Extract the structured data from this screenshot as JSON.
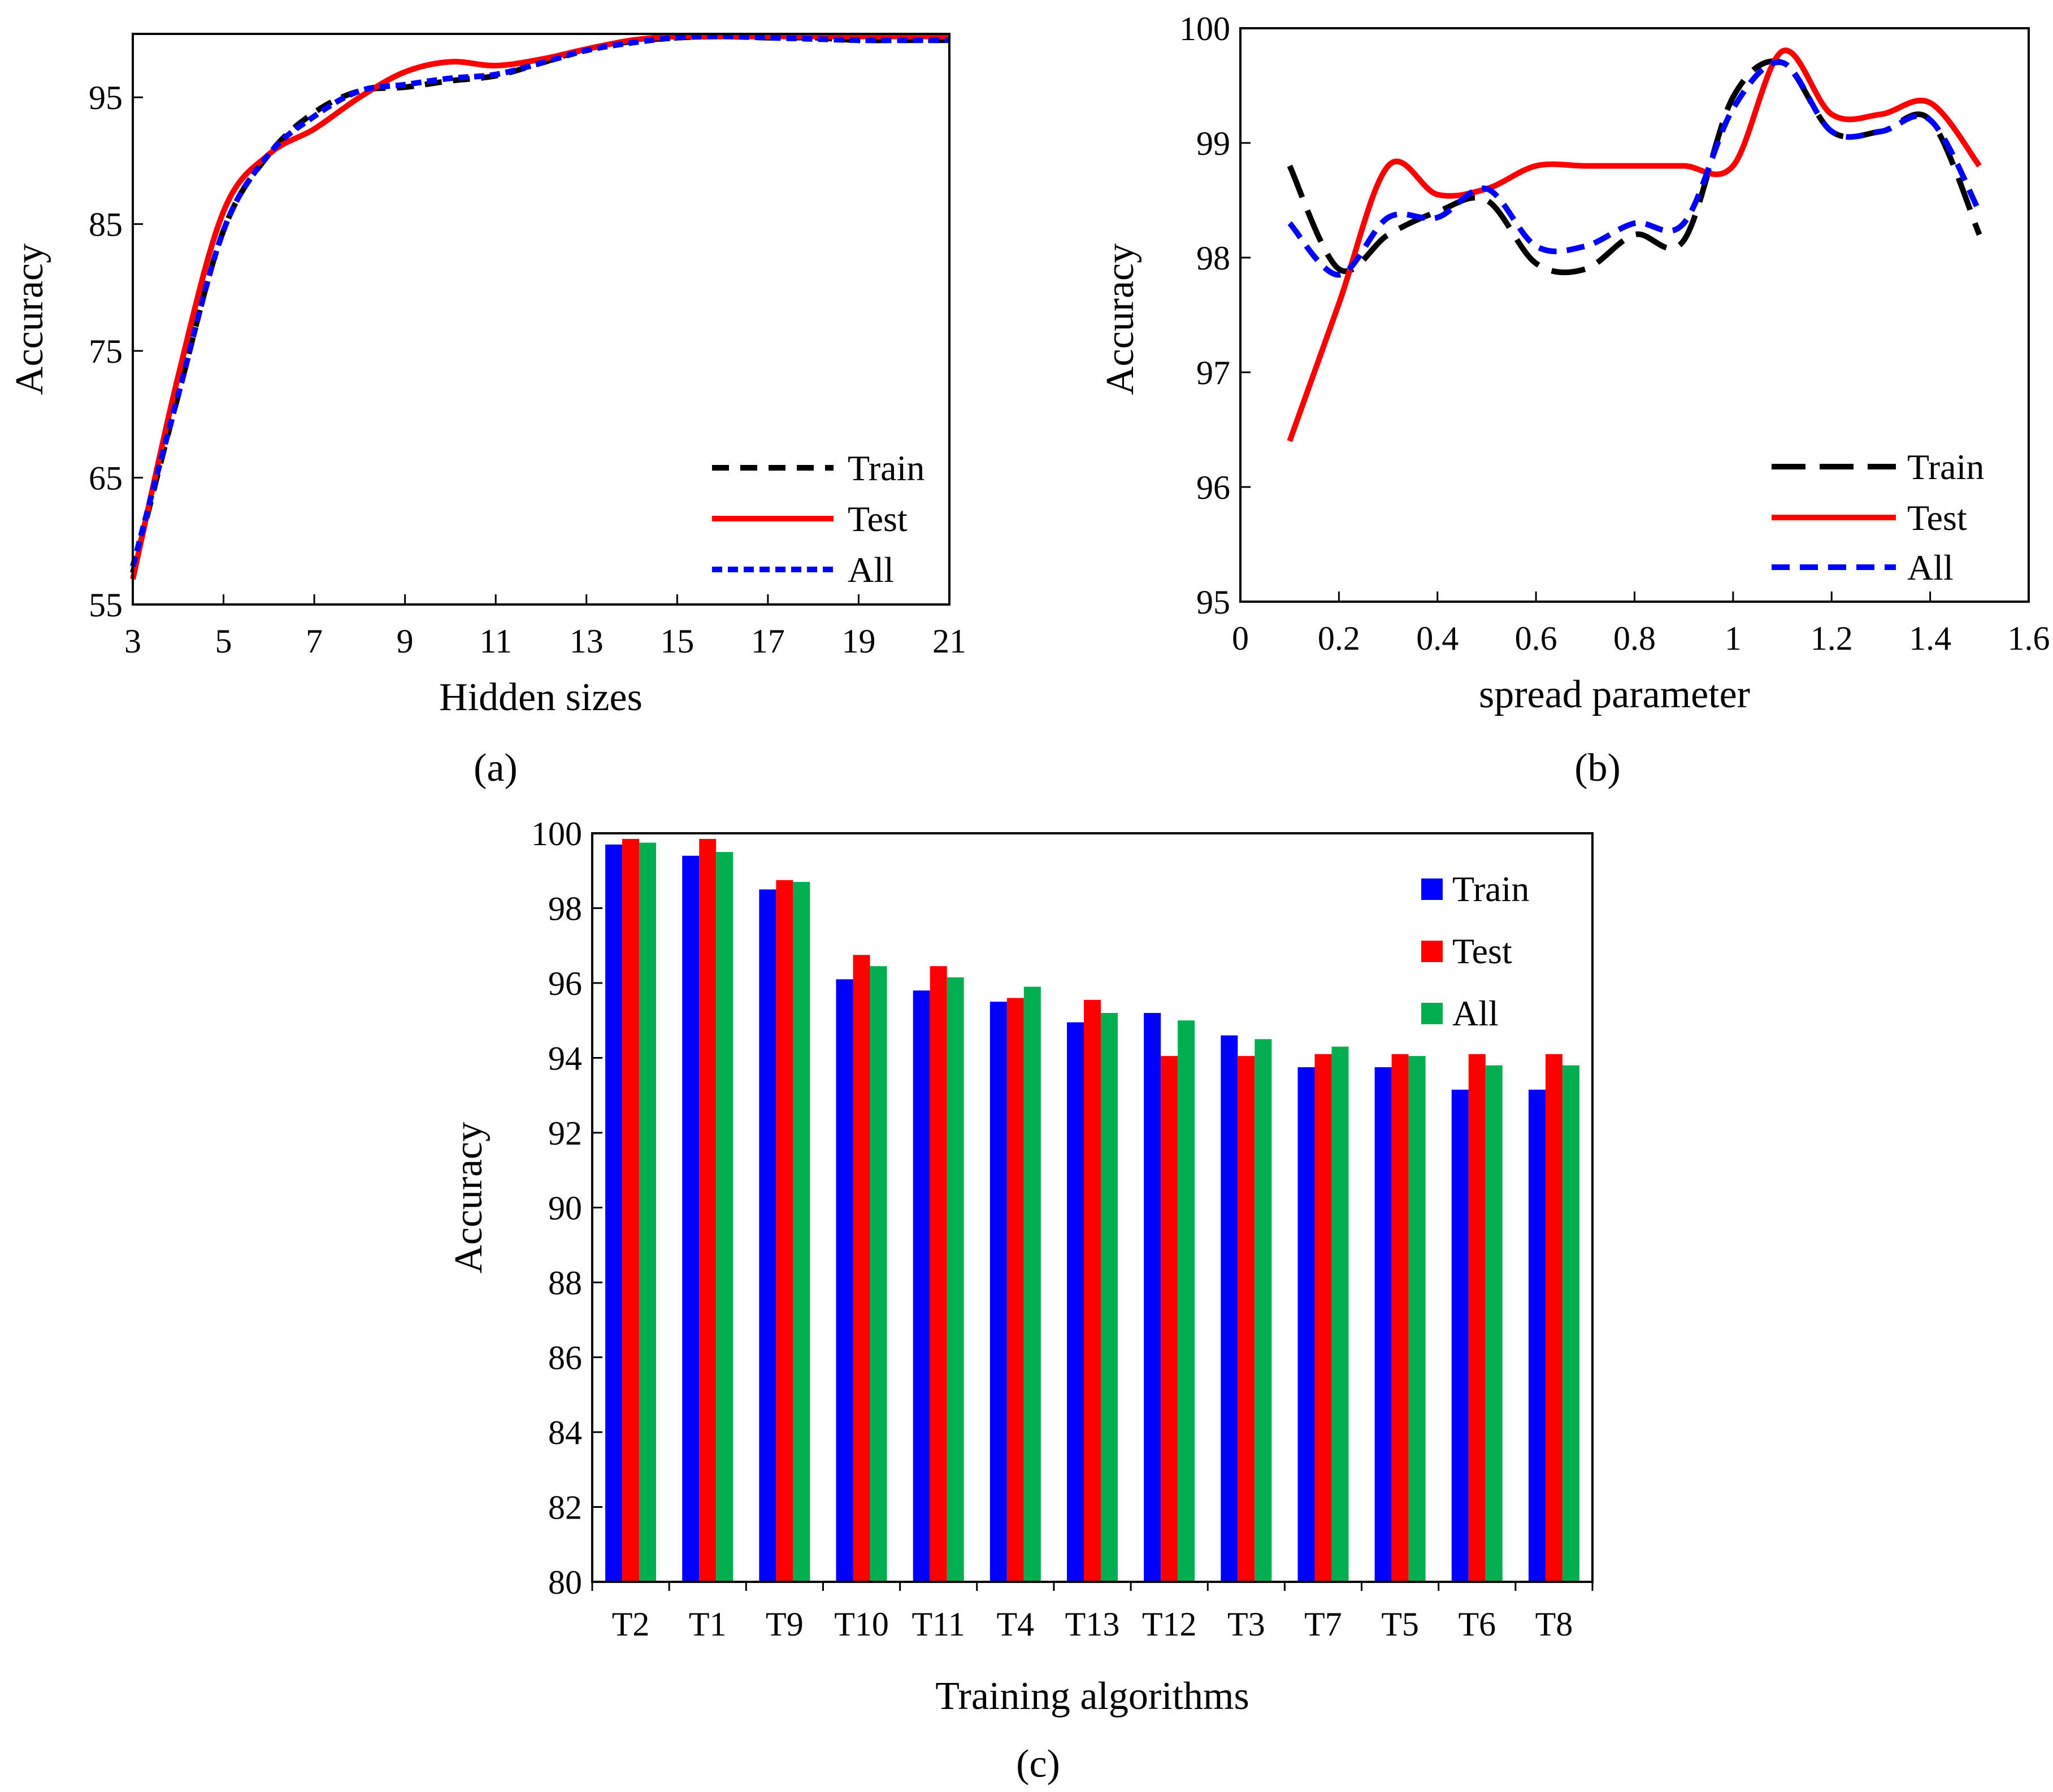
{
  "colors": {
    "train_line": "#000000",
    "test": "#ff0000",
    "all": "#0000ff",
    "train_bar": "#0000ff",
    "all_bar": "#00b050"
  },
  "chart_data": [
    {
      "id": "a",
      "type": "line",
      "caption": "(a)",
      "xlabel": "Hidden sizes",
      "ylabel": "Accuracy",
      "xlim": [
        3,
        21
      ],
      "ylim": [
        55,
        100
      ],
      "xticks": [
        3,
        5,
        7,
        9,
        11,
        13,
        15,
        17,
        19,
        21
      ],
      "yticks": [
        55,
        65,
        75,
        85,
        95
      ],
      "legend_position": "bottom-right",
      "series": [
        {
          "name": "Train",
          "x": [
            3,
            4,
            5,
            6,
            7,
            8,
            9,
            10,
            11,
            12,
            13,
            14,
            15,
            16,
            17,
            18,
            19,
            20,
            21
          ],
          "values": [
            57.5,
            71.5,
            84.5,
            90.5,
            93.8,
            95.5,
            95.8,
            96.3,
            96.7,
            97.7,
            98.8,
            99.4,
            99.7,
            99.8,
            99.7,
            99.7,
            99.5,
            99.5,
            99.5
          ]
        },
        {
          "name": "Test",
          "x": [
            3,
            4,
            5,
            6,
            7,
            8,
            9,
            10,
            11,
            12,
            13,
            14,
            15,
            16,
            17,
            18,
            19,
            20,
            21
          ],
          "values": [
            57.0,
            73.0,
            86.0,
            90.5,
            92.5,
            95.0,
            97.0,
            97.8,
            97.5,
            98.0,
            98.8,
            99.5,
            99.8,
            99.8,
            99.8,
            99.8,
            99.8,
            99.8,
            99.8
          ]
        },
        {
          "name": "All",
          "x": [
            3,
            4,
            5,
            6,
            7,
            8,
            9,
            10,
            11,
            12,
            13,
            14,
            15,
            16,
            17,
            18,
            19,
            20,
            21
          ],
          "values": [
            58.0,
            71.5,
            84.5,
            90.5,
            93.5,
            95.5,
            96.0,
            96.5,
            96.8,
            97.7,
            98.7,
            99.3,
            99.7,
            99.8,
            99.7,
            99.6,
            99.5,
            99.5,
            99.5
          ]
        }
      ]
    },
    {
      "id": "b",
      "type": "line",
      "caption": "(b)",
      "xlabel": "spread parameter",
      "ylabel": "Accuracy",
      "xlim": [
        0,
        1.6
      ],
      "ylim": [
        95,
        100
      ],
      "xticks": [
        0,
        0.2,
        0.4,
        0.6,
        0.8,
        1,
        1.2,
        1.4,
        1.6
      ],
      "yticks": [
        95,
        96,
        97,
        98,
        99,
        100
      ],
      "legend_position": "bottom-right",
      "series": [
        {
          "name": "Train",
          "x": [
            0.1,
            0.2,
            0.3,
            0.4,
            0.5,
            0.6,
            0.7,
            0.8,
            0.9,
            1.0,
            1.1,
            1.2,
            1.3,
            1.4,
            1.5
          ],
          "values": [
            98.8,
            97.9,
            98.2,
            98.4,
            98.5,
            97.95,
            97.9,
            98.2,
            98.15,
            99.4,
            99.7,
            99.1,
            99.1,
            99.2,
            98.2
          ]
        },
        {
          "name": "Test",
          "x": [
            0.1,
            0.2,
            0.3,
            0.4,
            0.5,
            0.6,
            0.7,
            0.8,
            0.9,
            1.0,
            1.1,
            1.2,
            1.3,
            1.4,
            1.5
          ],
          "values": [
            96.4,
            97.6,
            98.8,
            98.55,
            98.6,
            98.8,
            98.8,
            98.8,
            98.8,
            98.8,
            99.8,
            99.25,
            99.25,
            99.35,
            98.8
          ]
        },
        {
          "name": "All",
          "x": [
            0.1,
            0.2,
            0.3,
            0.4,
            0.5,
            0.6,
            0.7,
            0.8,
            0.9,
            1.0,
            1.1,
            1.2,
            1.3,
            1.4,
            1.5
          ],
          "values": [
            98.3,
            97.85,
            98.35,
            98.35,
            98.6,
            98.1,
            98.1,
            98.3,
            98.3,
            99.3,
            99.7,
            99.1,
            99.1,
            99.2,
            98.4
          ]
        }
      ]
    },
    {
      "id": "c",
      "type": "bar",
      "caption": "(c)",
      "xlabel": "Training algorithms",
      "ylabel": "Accuracy",
      "ylim": [
        80,
        100
      ],
      "yticks": [
        80,
        82,
        84,
        86,
        88,
        90,
        92,
        94,
        96,
        98,
        100
      ],
      "legend_position": "top-right",
      "categories": [
        "T2",
        "T1",
        "T9",
        "T10",
        "T11",
        "T4",
        "T13",
        "T12",
        "T3",
        "T7",
        "T5",
        "T6",
        "T8"
      ],
      "series": [
        {
          "name": "Train",
          "values": [
            99.7,
            99.4,
            98.5,
            96.1,
            95.8,
            95.5,
            94.95,
            95.2,
            94.6,
            93.75,
            93.75,
            93.15,
            93.15
          ]
        },
        {
          "name": "Test",
          "values": [
            99.85,
            99.85,
            98.75,
            96.75,
            96.45,
            95.6,
            95.55,
            94.05,
            94.05,
            94.1,
            94.1,
            94.1,
            94.1
          ]
        },
        {
          "name": "All",
          "values": [
            99.75,
            99.5,
            98.7,
            96.45,
            96.15,
            95.9,
            95.2,
            95.0,
            94.5,
            94.3,
            94.05,
            93.8,
            93.8
          ]
        }
      ]
    }
  ]
}
